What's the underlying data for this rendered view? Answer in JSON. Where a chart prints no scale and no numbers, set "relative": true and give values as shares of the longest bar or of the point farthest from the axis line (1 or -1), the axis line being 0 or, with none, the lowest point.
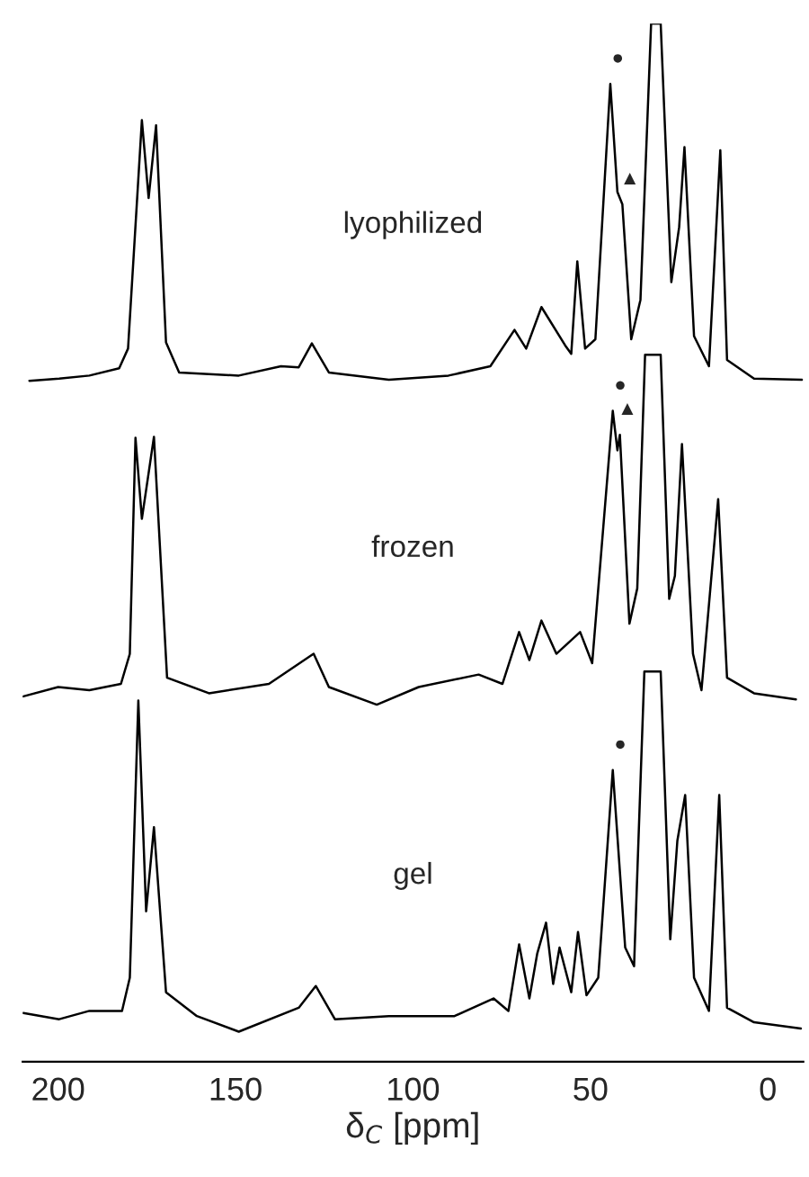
{
  "chart_data": {
    "type": "line",
    "relative": true,
    "xlim": [
      210,
      -10
    ],
    "xticks": [
      200,
      150,
      100,
      50,
      0
    ],
    "xlabel": "δ$_{C}$ [ppm]",
    "tick_labels": "x",
    "series": [
      {
        "color": "#000000",
        "x": [
          208.1,
          199.7,
          191.2,
          182.8,
          180.3,
          176.4,
          174.5,
          172.4,
          169.6,
          165.9,
          149.1,
          137.2,
          132.2,
          128.5,
          123.7,
          106.8,
          90,
          78.2,
          71.4,
          68.1,
          63.8,
          57.1,
          55.4,
          53.7,
          51.5,
          48.6,
          44.4,
          42.4,
          41.0,
          38.5,
          35.9,
          32.9,
          30.2,
          27.2,
          25.0,
          23.5,
          20.8,
          16.6,
          13.4,
          11.5,
          3.9,
          -9.6
        ],
        "values": [
          0.656,
          0.658,
          0.661,
          0.668,
          0.687,
          0.907,
          0.832,
          0.902,
          0.693,
          0.664,
          0.661,
          0.67,
          0.669,
          0.692,
          0.664,
          0.657,
          0.661,
          0.67,
          0.705,
          0.687,
          0.727,
          0.69,
          0.682,
          0.771,
          0.687,
          0.696,
          0.942,
          0.838,
          0.826,
          0.696,
          0.734,
          1,
          1,
          0.751,
          0.804,
          0.881,
          0.699,
          0.67,
          0.878,
          0.676,
          0.658,
          0.657
        ]
      },
      {
        "color": "#000000",
        "x": [
          209.8,
          200,
          191.2,
          182.3,
          179.8,
          178.2,
          176.4,
          173.0,
          169.3,
          157.5,
          140.6,
          128.0,
          123.7,
          110.2,
          98.4,
          81.5,
          74.8,
          70.1,
          67.2,
          63.8,
          59.6,
          52.9,
          49.5,
          43.7,
          42.4,
          41.7,
          39.0,
          36.8,
          34.6,
          30.2,
          27.8,
          26.2,
          24.2,
          21.1,
          18.7,
          14.0,
          11.5,
          3.9,
          -7.9
        ],
        "values": [
          0.352,
          0.361,
          0.358,
          0.364,
          0.393,
          0.601,
          0.523,
          0.602,
          0.37,
          0.355,
          0.364,
          0.393,
          0.361,
          0.344,
          0.361,
          0.373,
          0.364,
          0.414,
          0.387,
          0.425,
          0.393,
          0.414,
          0.384,
          0.627,
          0.589,
          0.604,
          0.422,
          0.456,
          0.681,
          0.681,
          0.446,
          0.468,
          0.595,
          0.393,
          0.358,
          0.542,
          0.37,
          0.355,
          0.349
        ]
      },
      {
        "color": "#000000",
        "x": [
          209.8,
          199.7,
          191.2,
          182.0,
          179.8,
          177.4,
          175.2,
          173.0,
          169.6,
          160.9,
          149.1,
          132.2,
          127.4,
          122.0,
          106.8,
          88.3,
          77.3,
          73.1,
          70.1,
          67.2,
          65.0,
          62.5,
          60.5,
          58.7,
          55.4,
          53.5,
          51.1,
          47.8,
          43.7,
          40.2,
          37.7,
          34.8,
          30.2,
          27.5,
          25.5,
          23.3,
          20.8,
          16.6,
          13.7,
          11.5,
          3.9,
          -9.3
        ],
        "values": [
          0.047,
          0.041,
          0.049,
          0.049,
          0.081,
          0.348,
          0.145,
          0.226,
          0.067,
          0.044,
          0.029,
          0.052,
          0.073,
          0.041,
          0.044,
          0.044,
          0.061,
          0.049,
          0.113,
          0.061,
          0.104,
          0.134,
          0.075,
          0.11,
          0.067,
          0.125,
          0.064,
          0.081,
          0.281,
          0.11,
          0.092,
          0.376,
          0.376,
          0.118,
          0.213,
          0.257,
          0.081,
          0.049,
          0.257,
          0.052,
          0.038,
          0.032
        ]
      }
    ],
    "annotations": [
      "lyophilized",
      "frozen",
      "gel",
      {
        "text": "●",
        "x": 44.4,
        "y": 0.942
      },
      {
        "text": "▲",
        "x": 41.0,
        "y": 0.826
      },
      {
        "text": "●",
        "x": 43.7,
        "y": 0.627
      },
      {
        "text": "▲",
        "x": 41.7,
        "y": 0.604
      },
      {
        "text": "●",
        "x": 43.7,
        "y": 0.281
      }
    ]
  }
}
